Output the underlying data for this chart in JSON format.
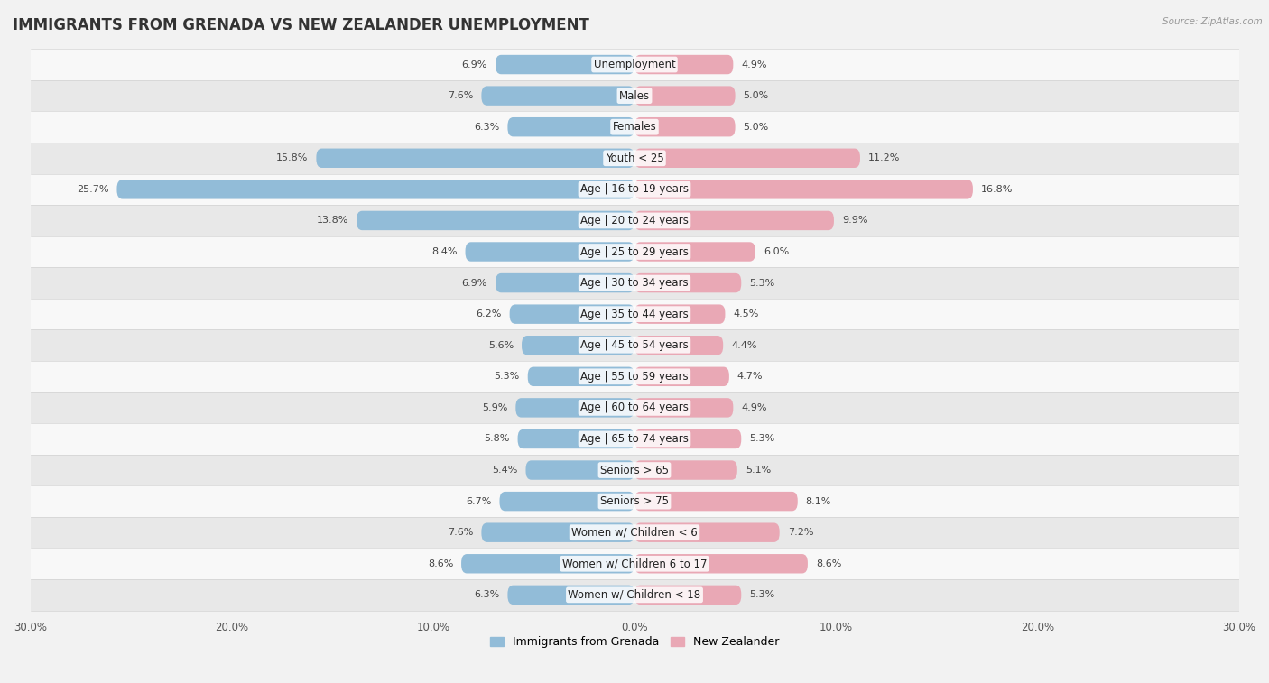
{
  "title": "IMMIGRANTS FROM GRENADA VS NEW ZEALANDER UNEMPLOYMENT",
  "source": "Source: ZipAtlas.com",
  "categories": [
    "Unemployment",
    "Males",
    "Females",
    "Youth < 25",
    "Age | 16 to 19 years",
    "Age | 20 to 24 years",
    "Age | 25 to 29 years",
    "Age | 30 to 34 years",
    "Age | 35 to 44 years",
    "Age | 45 to 54 years",
    "Age | 55 to 59 years",
    "Age | 60 to 64 years",
    "Age | 65 to 74 years",
    "Seniors > 65",
    "Seniors > 75",
    "Women w/ Children < 6",
    "Women w/ Children 6 to 17",
    "Women w/ Children < 18"
  ],
  "left_values": [
    6.9,
    7.6,
    6.3,
    15.8,
    25.7,
    13.8,
    8.4,
    6.9,
    6.2,
    5.6,
    5.3,
    5.9,
    5.8,
    5.4,
    6.7,
    7.6,
    8.6,
    6.3
  ],
  "right_values": [
    4.9,
    5.0,
    5.0,
    11.2,
    16.8,
    9.9,
    6.0,
    5.3,
    4.5,
    4.4,
    4.7,
    4.9,
    5.3,
    5.1,
    8.1,
    7.2,
    8.6,
    5.3
  ],
  "left_color": "#92bcd8",
  "right_color": "#e9a8b5",
  "axis_max": 30.0,
  "background_color": "#f2f2f2",
  "row_bg_odd": "#e8e8e8",
  "row_bg_even": "#f8f8f8",
  "legend_left": "Immigrants from Grenada",
  "legend_right": "New Zealander",
  "title_fontsize": 12,
  "label_fontsize": 8.5,
  "value_fontsize": 8.0,
  "tick_fontsize": 8.5
}
